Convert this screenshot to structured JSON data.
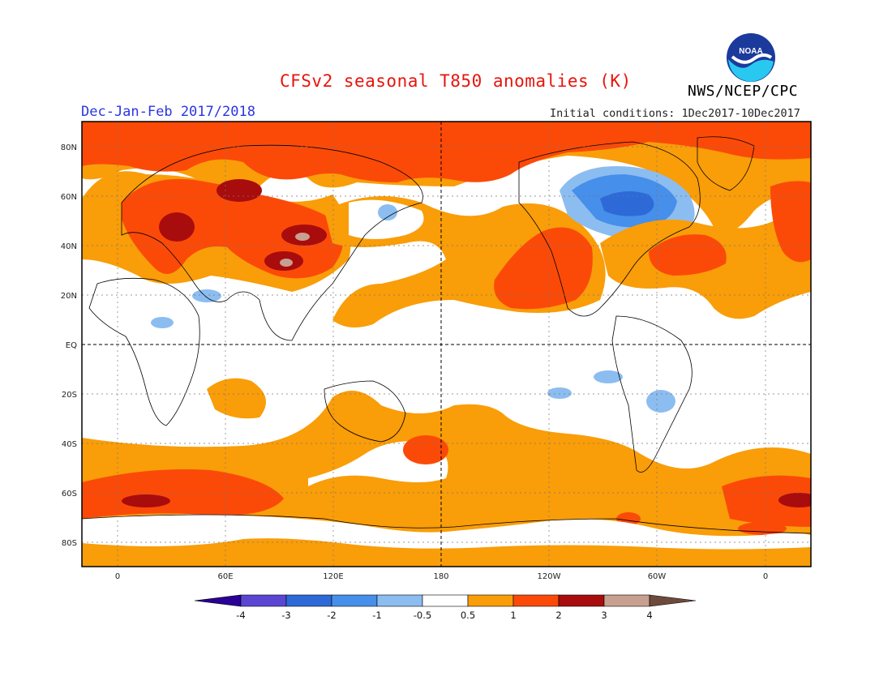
{
  "header": {
    "title": "CFSv2 seasonal T850 anomalies (K)",
    "season": "Dec-Jan-Feb 2017/2018",
    "initial_conditions": "Initial conditions: 1Dec2017-10Dec2017",
    "org": "NWS/NCEP/CPC",
    "logo_text": "NOAA"
  },
  "axes": {
    "lat_labels": [
      "80N",
      "60N",
      "40N",
      "20N",
      "EQ",
      "20S",
      "40S",
      "60S",
      "80S"
    ],
    "lon_labels": [
      "0",
      "60E",
      "120E",
      "180",
      "120W",
      "60W",
      "0"
    ]
  },
  "colorbar": {
    "labels": [
      "-4",
      "-3",
      "-2",
      "-1",
      "-0.5",
      "0.5",
      "1",
      "2",
      "3",
      "4"
    ],
    "colors": [
      "#2a0096",
      "#5b46d3",
      "#2d6ad8",
      "#468fea",
      "#8cbdf0",
      "#ffffff",
      "#f99d08",
      "#fb4a08",
      "#a80c0c",
      "#c8a090"
    ],
    "end_colors": {
      "low": "#2a0096",
      "high": "#6e4a3c"
    }
  },
  "map_colors": {
    "ocean_land_bg": "#ffffff",
    "anom_05_1": "#f99d08",
    "anom_1_2": "#fb4a08",
    "anom_2_3": "#a80c0c",
    "anom_3_4": "#c8a090",
    "anom_m05_m1": "#8cbdf0",
    "anom_m1_m2": "#468fea",
    "anom_m2_m3": "#2d6ad8"
  }
}
